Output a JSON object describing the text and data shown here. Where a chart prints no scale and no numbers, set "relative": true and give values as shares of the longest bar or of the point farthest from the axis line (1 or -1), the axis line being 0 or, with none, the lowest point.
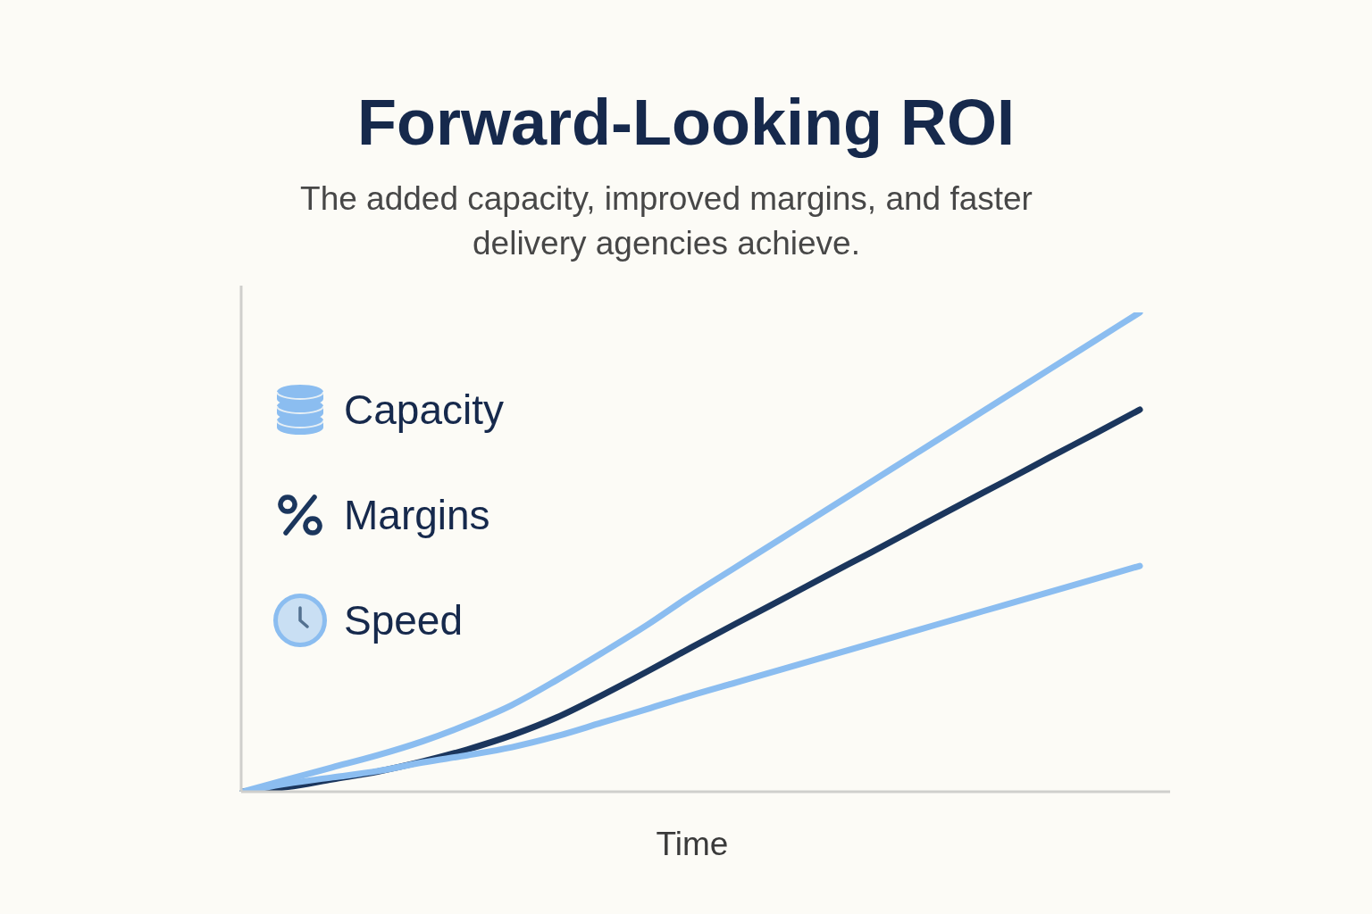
{
  "chart_data": {
    "type": "line",
    "title": "Forward-Looking ROI",
    "subtitle": "The added capacity, improved margins, and faster delivery agencies achieve.",
    "xlabel": "Time",
    "categories": [
      null,
      null,
      null,
      null,
      null,
      null,
      null,
      null,
      null,
      null,
      null,
      null,
      null,
      null,
      null,
      null,
      null,
      null,
      null,
      null,
      null
    ],
    "relative": true,
    "series": [
      {
        "name": "Capacity",
        "color": "#8bbdf0",
        "values": [
          0,
          0.026,
          0.051,
          0.076,
          0.105,
          0.14,
          0.181,
          0.233,
          0.289,
          0.347,
          0.41,
          0.469,
          0.528,
          0.587,
          0.646,
          0.705,
          0.764,
          0.823,
          0.882,
          0.941,
          1
        ]
      },
      {
        "name": "Margins",
        "color": "#1b365d",
        "values": [
          0,
          0.01,
          0.026,
          0.042,
          0.063,
          0.088,
          0.118,
          0.155,
          0.201,
          0.25,
          0.301,
          0.351,
          0.4,
          0.45,
          0.499,
          0.549,
          0.599,
          0.648,
          0.698,
          0.747,
          0.797
        ]
      },
      {
        "name": "Speed",
        "color": "#8bbdf0",
        "values": [
          0,
          0.017,
          0.03,
          0.043,
          0.061,
          0.076,
          0.093,
          0.116,
          0.144,
          0.172,
          0.201,
          0.228,
          0.255,
          0.282,
          0.309,
          0.336,
          0.363,
          0.39,
          0.417,
          0.444,
          0.471
        ]
      }
    ],
    "legend": "top left",
    "marker": "none"
  }
}
